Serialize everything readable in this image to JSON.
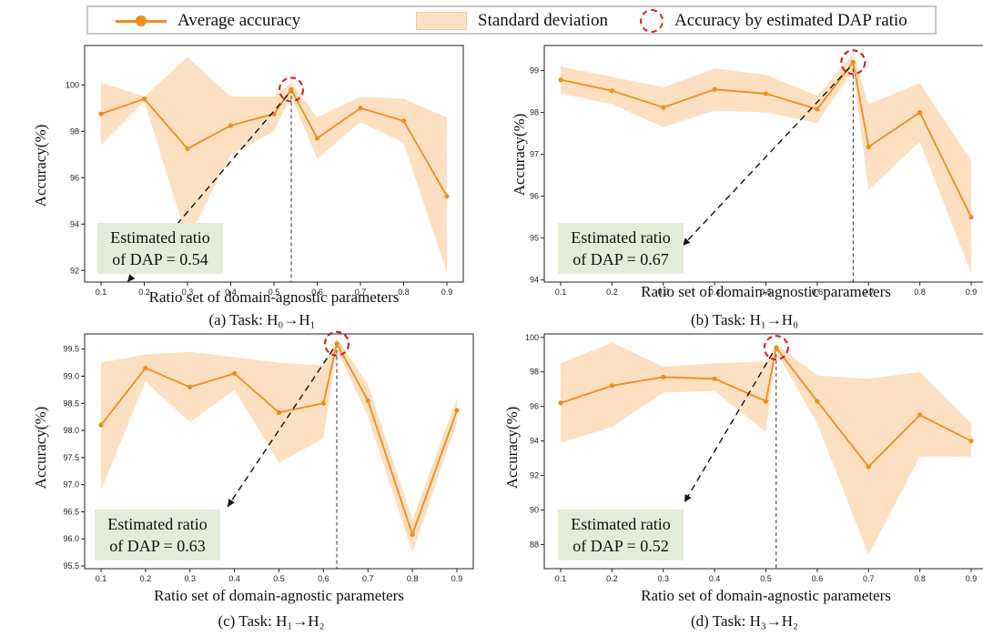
{
  "legend": {
    "average": "Average accuracy",
    "std": "Standard deviation",
    "estimated": "Accuracy by estimated DAP ratio"
  },
  "colors": {
    "line": "#f08c1e",
    "band": "#fde0c2",
    "highlight": "#e02020",
    "box": "#e3ecd9"
  },
  "chart_data": [
    {
      "type": "line",
      "caption": "(a) Task: H₀→H₁",
      "xlabel": "Ratio set of domain-agnostic parameters",
      "ylabel": "Accuracy(%)",
      "x_ticks": [
        "0.1",
        "0.2",
        "0.3",
        "0.4",
        "0.5",
        "0.6",
        "0.7",
        "0.8",
        "0.9"
      ],
      "y_ticks": [
        "92",
        "94",
        "96",
        "98",
        "100"
      ],
      "ylim": [
        91.5,
        101.7
      ],
      "x": [
        0.1,
        0.2,
        0.3,
        0.4,
        0.5,
        0.54,
        0.6,
        0.7,
        0.8,
        0.9
      ],
      "series": [
        {
          "values": [
            98.75,
            99.4,
            97.25,
            98.25,
            98.75,
            99.8,
            97.7,
            99.0,
            98.45,
            95.2
          ],
          "upper": [
            100.1,
            99.5,
            101.2,
            99.5,
            99.5,
            100.1,
            98.6,
            99.5,
            99.4,
            98.6
          ],
          "lower": [
            97.4,
            99.3,
            93.3,
            97.0,
            98.0,
            99.5,
            96.8,
            98.4,
            97.5,
            91.9
          ]
        }
      ],
      "estimated_ratio": 0.54,
      "estimated_label": [
        "Estimated ratio",
        "of DAP = 0.54"
      ]
    },
    {
      "type": "line",
      "caption": "(b) Task: H₁→H₀",
      "xlabel": "Ratio set of domain-agnostic parameters",
      "ylabel": "Accuracy(%)",
      "x_ticks": [
        "0.1",
        "0.2",
        "0.3",
        "0.4",
        "0.5",
        "0.6",
        "0.7",
        "0.8",
        "0.9"
      ],
      "y_ticks": [
        "94",
        "95",
        "96",
        "97",
        "98",
        "99"
      ],
      "ylim": [
        93.95,
        99.6
      ],
      "x": [
        0.1,
        0.2,
        0.3,
        0.4,
        0.5,
        0.6,
        0.67,
        0.7,
        0.8,
        0.9
      ],
      "series": [
        {
          "values": [
            98.78,
            98.52,
            98.12,
            98.55,
            98.45,
            98.08,
            99.2,
            97.18,
            98.0,
            95.5
          ],
          "upper": [
            99.1,
            98.85,
            98.6,
            99.05,
            98.9,
            98.4,
            99.4,
            98.2,
            98.7,
            96.85
          ],
          "lower": [
            98.45,
            98.2,
            97.65,
            98.05,
            98.0,
            97.75,
            99.0,
            96.15,
            97.3,
            94.15
          ]
        }
      ],
      "estimated_ratio": 0.67,
      "estimated_label": [
        "Estimated ratio",
        "of DAP = 0.67"
      ]
    },
    {
      "type": "line",
      "caption": "(c) Task: H₁→H₂",
      "xlabel": "Ratio set of domain-agnostic parameters",
      "ylabel": "Accuracy(%)",
      "x_ticks": [
        "0.1",
        "0.2",
        "0.3",
        "0.4",
        "0.5",
        "0.6",
        "0.7",
        "0.8",
        "0.9"
      ],
      "y_ticks": [
        "95.5",
        "96.0",
        "96.5",
        "97.0",
        "97.5",
        "98.0",
        "98.5",
        "99.0",
        "99.5"
      ],
      "ylim": [
        95.45,
        99.78
      ],
      "x": [
        0.1,
        0.2,
        0.3,
        0.4,
        0.5,
        0.6,
        0.63,
        0.7,
        0.8,
        0.9
      ],
      "series": [
        {
          "values": [
            98.1,
            99.15,
            98.8,
            99.05,
            98.33,
            98.5,
            99.6,
            98.55,
            96.08,
            98.37
          ],
          "upper": [
            99.25,
            99.4,
            99.45,
            99.35,
            99.25,
            99.2,
            99.7,
            98.85,
            96.35,
            98.6
          ],
          "lower": [
            96.9,
            98.9,
            98.15,
            98.75,
            97.4,
            97.85,
            99.5,
            98.25,
            95.75,
            98.15
          ]
        }
      ],
      "estimated_ratio": 0.63,
      "estimated_label": [
        "Estimated ratio",
        "of DAP = 0.63"
      ]
    },
    {
      "type": "line",
      "caption": "(d) Task: H₃→H₂",
      "xlabel": "Ratio set of domain-agnostic parameters",
      "ylabel": "Accuracy(%)",
      "x_ticks": [
        "0.1",
        "0.2",
        "0.3",
        "0.4",
        "0.5",
        "0.6",
        "0.7",
        "0.8",
        "0.9"
      ],
      "y_ticks": [
        "88",
        "90",
        "92",
        "94",
        "96",
        "98",
        "100"
      ],
      "ylim": [
        86.6,
        100.2
      ],
      "x": [
        0.1,
        0.2,
        0.3,
        0.4,
        0.5,
        0.52,
        0.6,
        0.7,
        0.8,
        0.9
      ],
      "series": [
        {
          "values": [
            96.2,
            97.2,
            97.7,
            97.6,
            96.3,
            99.4,
            96.3,
            92.5,
            95.5,
            94.0
          ],
          "upper": [
            98.5,
            99.7,
            98.3,
            98.5,
            98.6,
            99.6,
            97.8,
            97.6,
            98.0,
            95.0
          ],
          "lower": [
            93.9,
            94.8,
            96.8,
            96.9,
            94.5,
            99.2,
            95.0,
            87.4,
            93.1,
            93.1
          ]
        }
      ],
      "estimated_ratio": 0.52,
      "estimated_label": [
        "Estimated ratio",
        "of DAP = 0.52"
      ]
    }
  ]
}
